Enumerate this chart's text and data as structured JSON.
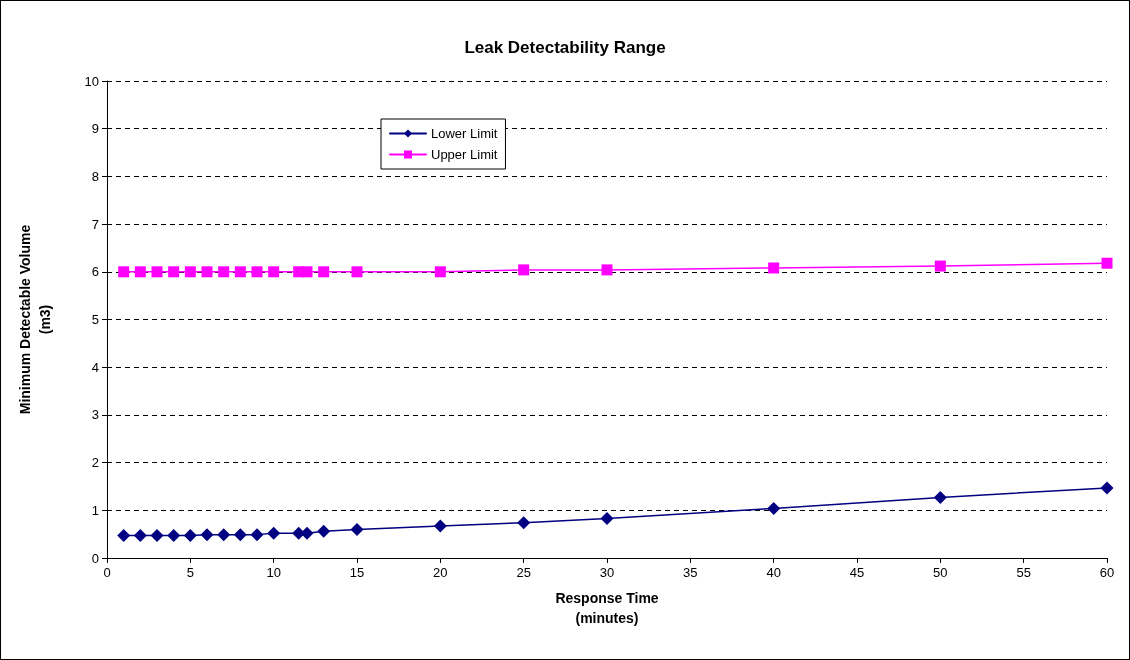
{
  "chart_data": {
    "type": "line",
    "title": "Leak Detectability Range",
    "xlabel": "Response Time\n(minutes)",
    "ylabel": "Minimum Detectable Volume\n(m3)",
    "x": [
      1,
      2,
      3,
      4,
      5,
      6,
      7,
      8,
      9,
      10,
      11.5,
      12,
      13,
      15,
      20,
      25,
      30,
      40,
      50,
      60
    ],
    "series": [
      {
        "name": "Lower Limit",
        "color": "#000080",
        "marker": "diamond",
        "values": [
          0.47,
          0.47,
          0.47,
          0.47,
          0.47,
          0.49,
          0.49,
          0.49,
          0.49,
          0.52,
          0.52,
          0.52,
          0.56,
          0.6,
          0.67,
          0.74,
          0.83,
          1.04,
          1.27,
          1.47
        ]
      },
      {
        "name": "Upper Limit",
        "color": "#ff00ff",
        "marker": "square",
        "values": [
          6.0,
          6.0,
          6.0,
          6.0,
          6.0,
          6.0,
          6.0,
          6.0,
          6.0,
          6.0,
          6.0,
          6.0,
          6.0,
          6.0,
          6.0,
          6.04,
          6.04,
          6.08,
          6.12,
          6.18
        ]
      }
    ],
    "xlim": [
      0,
      60
    ],
    "xticks": [
      0,
      5,
      10,
      15,
      20,
      25,
      30,
      35,
      40,
      45,
      50,
      55,
      60
    ],
    "ylim": [
      0,
      10
    ],
    "yticks": [
      0,
      1,
      2,
      3,
      4,
      5,
      6,
      7,
      8,
      9,
      10
    ],
    "grid": "y",
    "legend": "top left",
    "line_style": "solid"
  }
}
